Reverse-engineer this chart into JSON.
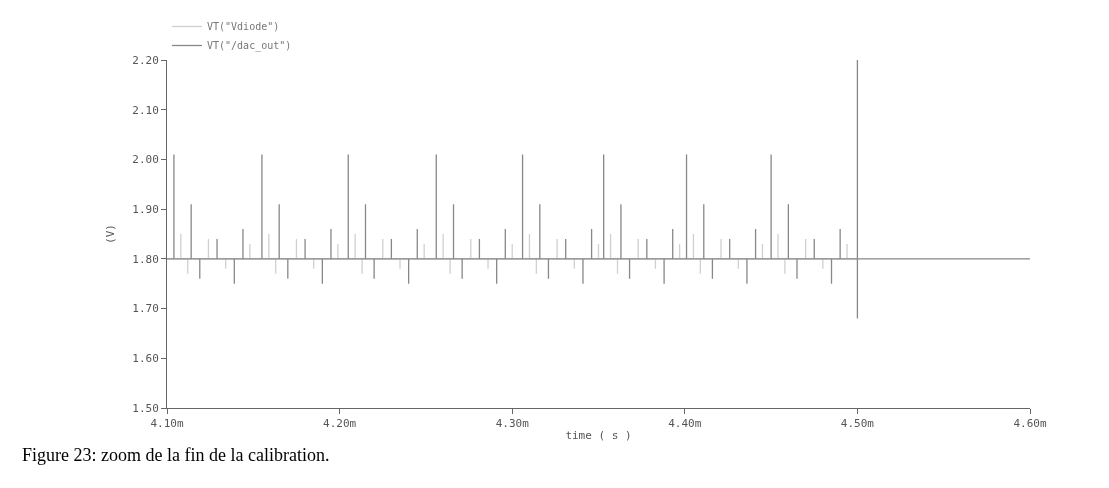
{
  "chart_data": {
    "type": "line",
    "xlabel": "time ( s )",
    "ylabel": "(V)",
    "xlim": [
      4.1,
      4.6
    ],
    "xticks": [
      {
        "value": 4.1,
        "label": "4.10m"
      },
      {
        "value": 4.2,
        "label": "4.20m"
      },
      {
        "value": 4.3,
        "label": "4.30m"
      },
      {
        "value": 4.4,
        "label": "4.40m"
      },
      {
        "value": 4.5,
        "label": "4.50m"
      },
      {
        "value": 4.6,
        "label": "4.60m"
      }
    ],
    "ylim": [
      1.5,
      2.2
    ],
    "yticks": [
      {
        "value": 1.5,
        "label": "1.50"
      },
      {
        "value": 1.6,
        "label": "1.60"
      },
      {
        "value": 1.7,
        "label": "1.70"
      },
      {
        "value": 1.8,
        "label": "1.80"
      },
      {
        "value": 1.9,
        "label": "1.90"
      },
      {
        "value": 2.0,
        "label": "2.00"
      },
      {
        "value": 2.1,
        "label": "2.10"
      },
      {
        "value": 2.2,
        "label": "2.20"
      }
    ],
    "grid": false,
    "legend": "top left",
    "marker": "none",
    "line_style": "solid",
    "annotations": [
      "Figure 23: zoom de la fin de la calibration."
    ],
    "series": [
      {
        "name": "VT(\"Vdiode\")",
        "color": "#d0d0d0",
        "x": [
          4.1,
          4.108,
          4.108,
          4.108,
          4.112,
          4.112,
          4.112,
          4.124,
          4.124,
          4.124,
          4.134,
          4.134,
          4.134,
          4.148,
          4.148,
          4.148,
          4.159,
          4.159,
          4.159,
          4.163,
          4.163,
          4.163,
          4.175,
          4.175,
          4.175,
          4.185,
          4.185,
          4.185,
          4.199,
          4.199,
          4.199,
          4.209,
          4.209,
          4.209,
          4.213,
          4.213,
          4.213,
          4.225,
          4.225,
          4.225,
          4.235,
          4.235,
          4.235,
          4.249,
          4.249,
          4.249,
          4.26,
          4.26,
          4.26,
          4.264,
          4.264,
          4.264,
          4.276,
          4.276,
          4.276,
          4.286,
          4.286,
          4.286,
          4.3,
          4.3,
          4.3,
          4.31,
          4.31,
          4.31,
          4.314,
          4.314,
          4.314,
          4.326,
          4.326,
          4.326,
          4.336,
          4.336,
          4.336,
          4.35,
          4.35,
          4.35,
          4.357,
          4.357,
          4.357,
          4.361,
          4.361,
          4.361,
          4.373,
          4.373,
          4.373,
          4.383,
          4.383,
          4.383,
          4.397,
          4.397,
          4.397,
          4.405,
          4.405,
          4.405,
          4.409,
          4.409,
          4.409,
          4.421,
          4.421,
          4.421,
          4.431,
          4.431,
          4.431,
          4.445,
          4.445,
          4.445,
          4.454,
          4.454,
          4.454,
          4.458,
          4.458,
          4.458,
          4.47,
          4.47,
          4.47,
          4.48,
          4.48,
          4.48,
          4.494,
          4.494,
          4.494,
          4.5
        ],
        "values": [
          1.8,
          1.8,
          1.85,
          1.8,
          1.8,
          1.77,
          1.8,
          1.8,
          1.84,
          1.8,
          1.8,
          1.78,
          1.8,
          1.8,
          1.83,
          1.8,
          1.8,
          1.85,
          1.8,
          1.8,
          1.77,
          1.8,
          1.8,
          1.84,
          1.8,
          1.8,
          1.78,
          1.8,
          1.8,
          1.83,
          1.8,
          1.8,
          1.85,
          1.8,
          1.8,
          1.77,
          1.8,
          1.8,
          1.84,
          1.8,
          1.8,
          1.78,
          1.8,
          1.8,
          1.83,
          1.8,
          1.8,
          1.85,
          1.8,
          1.8,
          1.77,
          1.8,
          1.8,
          1.84,
          1.8,
          1.8,
          1.78,
          1.8,
          1.8,
          1.83,
          1.8,
          1.8,
          1.85,
          1.8,
          1.8,
          1.77,
          1.8,
          1.8,
          1.84,
          1.8,
          1.8,
          1.78,
          1.8,
          1.8,
          1.83,
          1.8,
          1.8,
          1.85,
          1.8,
          1.8,
          1.77,
          1.8,
          1.8,
          1.84,
          1.8,
          1.8,
          1.78,
          1.8,
          1.8,
          1.83,
          1.8,
          1.8,
          1.85,
          1.8,
          1.8,
          1.77,
          1.8,
          1.8,
          1.84,
          1.8,
          1.8,
          1.78,
          1.8,
          1.8,
          1.83,
          1.8,
          1.8,
          1.85,
          1.8,
          1.8,
          1.77,
          1.8,
          1.8,
          1.84,
          1.8,
          1.8,
          1.78,
          1.8,
          1.8,
          1.83,
          1.8,
          1.8
        ]
      },
      {
        "name": "VT(\"/dac_out\")",
        "color": "#888888",
        "x": [
          4.1,
          4.104,
          4.104,
          4.104,
          4.114,
          4.114,
          4.114,
          4.119,
          4.119,
          4.119,
          4.129,
          4.129,
          4.129,
          4.139,
          4.139,
          4.139,
          4.144,
          4.144,
          4.144,
          4.155,
          4.155,
          4.155,
          4.165,
          4.165,
          4.165,
          4.17,
          4.17,
          4.17,
          4.18,
          4.18,
          4.18,
          4.19,
          4.19,
          4.19,
          4.195,
          4.195,
          4.195,
          4.205,
          4.205,
          4.205,
          4.215,
          4.215,
          4.215,
          4.22,
          4.22,
          4.22,
          4.23,
          4.23,
          4.23,
          4.24,
          4.24,
          4.24,
          4.245,
          4.245,
          4.245,
          4.256,
          4.256,
          4.256,
          4.266,
          4.266,
          4.266,
          4.271,
          4.271,
          4.271,
          4.281,
          4.281,
          4.281,
          4.291,
          4.291,
          4.291,
          4.296,
          4.296,
          4.296,
          4.306,
          4.306,
          4.306,
          4.316,
          4.316,
          4.316,
          4.321,
          4.321,
          4.321,
          4.331,
          4.331,
          4.331,
          4.341,
          4.341,
          4.341,
          4.346,
          4.346,
          4.346,
          4.353,
          4.353,
          4.353,
          4.363,
          4.363,
          4.363,
          4.368,
          4.368,
          4.368,
          4.378,
          4.378,
          4.378,
          4.388,
          4.388,
          4.388,
          4.393,
          4.393,
          4.393,
          4.401,
          4.401,
          4.401,
          4.411,
          4.411,
          4.411,
          4.416,
          4.416,
          4.416,
          4.426,
          4.426,
          4.426,
          4.436,
          4.436,
          4.436,
          4.441,
          4.441,
          4.441,
          4.45,
          4.45,
          4.45,
          4.46,
          4.46,
          4.46,
          4.465,
          4.465,
          4.465,
          4.475,
          4.475,
          4.475,
          4.485,
          4.485,
          4.485,
          4.49,
          4.49,
          4.49,
          4.5,
          4.5,
          4.5,
          4.5,
          4.6
        ],
        "values": [
          1.8,
          1.8,
          2.01,
          1.8,
          1.8,
          1.91,
          1.8,
          1.8,
          1.76,
          1.8,
          1.8,
          1.84,
          1.8,
          1.8,
          1.75,
          1.8,
          1.8,
          1.86,
          1.8,
          1.8,
          2.01,
          1.8,
          1.8,
          1.91,
          1.8,
          1.8,
          1.76,
          1.8,
          1.8,
          1.84,
          1.8,
          1.8,
          1.75,
          1.8,
          1.8,
          1.86,
          1.8,
          1.8,
          2.01,
          1.8,
          1.8,
          1.91,
          1.8,
          1.8,
          1.76,
          1.8,
          1.8,
          1.84,
          1.8,
          1.8,
          1.75,
          1.8,
          1.8,
          1.86,
          1.8,
          1.8,
          2.01,
          1.8,
          1.8,
          1.91,
          1.8,
          1.8,
          1.76,
          1.8,
          1.8,
          1.84,
          1.8,
          1.8,
          1.75,
          1.8,
          1.8,
          1.86,
          1.8,
          1.8,
          2.01,
          1.8,
          1.8,
          1.91,
          1.8,
          1.8,
          1.76,
          1.8,
          1.8,
          1.84,
          1.8,
          1.8,
          1.75,
          1.8,
          1.8,
          1.86,
          1.8,
          1.8,
          2.01,
          1.8,
          1.8,
          1.91,
          1.8,
          1.8,
          1.76,
          1.8,
          1.8,
          1.84,
          1.8,
          1.8,
          1.75,
          1.8,
          1.8,
          1.86,
          1.8,
          1.8,
          2.01,
          1.8,
          1.8,
          1.91,
          1.8,
          1.8,
          1.76,
          1.8,
          1.8,
          1.84,
          1.8,
          1.8,
          1.75,
          1.8,
          1.8,
          1.86,
          1.8,
          1.8,
          2.01,
          1.8,
          1.8,
          1.91,
          1.8,
          1.8,
          1.76,
          1.8,
          1.8,
          1.84,
          1.8,
          1.8,
          1.75,
          1.8,
          1.8,
          1.86,
          1.8,
          1.8,
          2.2,
          1.68,
          1.8,
          1.8
        ]
      }
    ]
  }
}
